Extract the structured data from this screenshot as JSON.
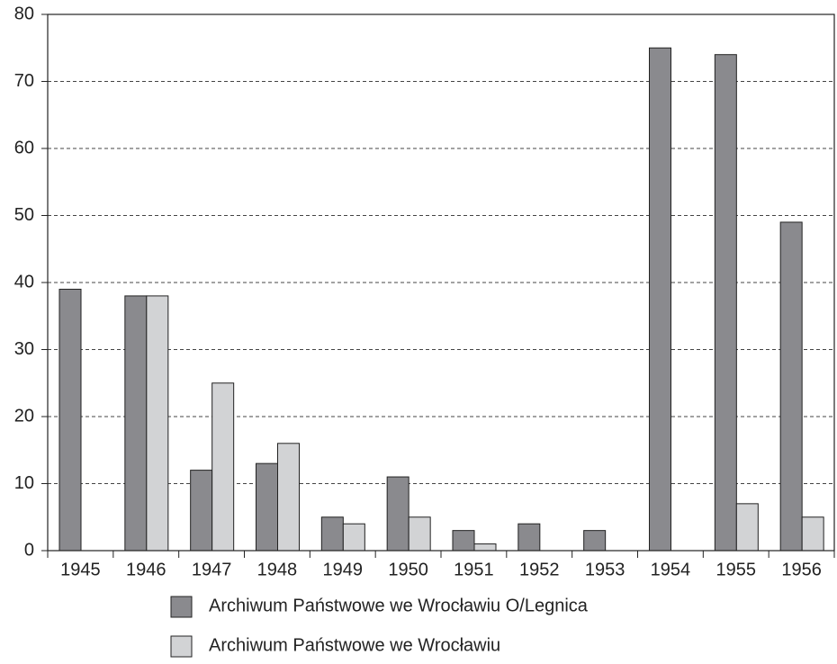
{
  "chart_data": {
    "type": "bar",
    "categories": [
      "1945",
      "1946",
      "1947",
      "1948",
      "1949",
      "1950",
      "1951",
      "1952",
      "1953",
      "1954",
      "1955",
      "1956"
    ],
    "series": [
      {
        "name": "Archiwum Państwowe we Wrocławiu O/Legnica",
        "color": "#8a8a8e",
        "values": [
          39,
          38,
          12,
          13,
          5,
          11,
          3,
          4,
          3,
          75,
          74,
          49
        ]
      },
      {
        "name": "Archiwum Państwowe we Wrocławiu",
        "color": "#d2d3d5",
        "values": [
          0,
          38,
          25,
          16,
          4,
          5,
          1,
          0,
          0,
          0,
          7,
          5
        ]
      }
    ],
    "ylim": [
      0,
      80
    ],
    "yticks": [
      0,
      10,
      20,
      30,
      40,
      50,
      60,
      70,
      80
    ],
    "grid": true,
    "legend": "bottom"
  }
}
